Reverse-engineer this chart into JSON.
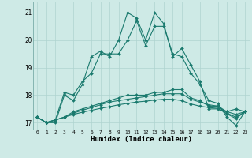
{
  "xlabel": "Humidex (Indice chaleur)",
  "bg_color": "#ceeae6",
  "grid_color": "#afd4d0",
  "line_color": "#1a7a6e",
  "xlim": [
    -0.5,
    23.5
  ],
  "ylim": [
    16.75,
    21.4
  ],
  "yticks": [
    17,
    18,
    19,
    20,
    21
  ],
  "xticks": [
    0,
    1,
    2,
    3,
    4,
    5,
    6,
    7,
    8,
    9,
    10,
    11,
    12,
    13,
    14,
    15,
    16,
    17,
    18,
    19,
    20,
    21,
    22,
    23
  ],
  "series1": [
    17.2,
    17.0,
    17.0,
    18.0,
    17.8,
    18.4,
    19.4,
    19.6,
    19.4,
    20.0,
    21.0,
    20.8,
    20.0,
    21.0,
    20.6,
    19.4,
    19.7,
    19.1,
    18.5,
    17.5,
    17.5,
    17.4,
    17.5,
    17.4
  ],
  "series2": [
    17.2,
    17.0,
    17.1,
    18.1,
    18.0,
    18.5,
    18.8,
    19.5,
    19.5,
    19.5,
    20.0,
    20.7,
    19.8,
    20.5,
    20.5,
    19.5,
    19.4,
    18.8,
    18.4,
    17.8,
    17.7,
    17.2,
    16.9,
    17.4
  ],
  "series3": [
    17.2,
    17.0,
    17.1,
    17.2,
    17.4,
    17.5,
    17.6,
    17.7,
    17.8,
    17.9,
    18.0,
    18.0,
    18.0,
    18.1,
    18.1,
    18.2,
    18.2,
    17.9,
    17.8,
    17.6,
    17.6,
    17.4,
    17.3,
    17.4
  ],
  "series4": [
    17.2,
    17.0,
    17.1,
    17.2,
    17.35,
    17.45,
    17.55,
    17.65,
    17.75,
    17.8,
    17.85,
    17.9,
    17.95,
    18.0,
    18.05,
    18.05,
    18.05,
    17.85,
    17.75,
    17.65,
    17.6,
    17.35,
    17.2,
    17.4
  ],
  "series5": [
    17.2,
    17.0,
    17.1,
    17.2,
    17.3,
    17.38,
    17.45,
    17.52,
    17.58,
    17.65,
    17.7,
    17.75,
    17.78,
    17.82,
    17.85,
    17.85,
    17.8,
    17.68,
    17.6,
    17.55,
    17.52,
    17.32,
    17.15,
    17.4
  ]
}
